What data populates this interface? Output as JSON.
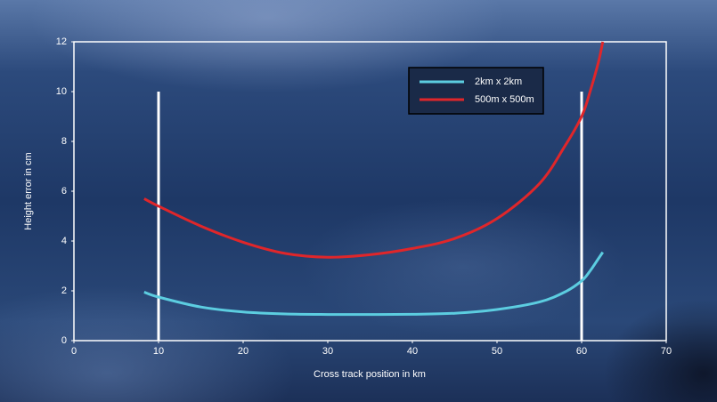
{
  "chart_data": {
    "type": "line",
    "x_label": "Cross track position in km",
    "y_label": "Height error in cm",
    "x": [
      8.3,
      10,
      15,
      20,
      25,
      30,
      35,
      40,
      45,
      50,
      55,
      58,
      60,
      61,
      62,
      62.5
    ],
    "series": [
      {
        "name": "2km x 2km",
        "color": "#5ccde0",
        "values": [
          1.95,
          1.75,
          1.35,
          1.15,
          1.07,
          1.05,
          1.05,
          1.06,
          1.1,
          1.25,
          1.55,
          1.95,
          2.4,
          2.8,
          3.3,
          3.55
        ]
      },
      {
        "name": "500m x 500m",
        "color": "#e0262a",
        "values": [
          5.7,
          5.4,
          4.6,
          3.95,
          3.5,
          3.35,
          3.45,
          3.7,
          4.1,
          4.9,
          6.3,
          7.8,
          9.0,
          10.0,
          11.2,
          12
        ]
      }
    ],
    "vlines": {
      "x": [
        10,
        60
      ],
      "top": 10
    },
    "xlim": [
      0,
      70
    ],
    "xticks": [
      0,
      10,
      20,
      30,
      40,
      50,
      60,
      70
    ],
    "ylim": [
      0,
      12
    ],
    "yticks": [
      0,
      2,
      4,
      6,
      8,
      10,
      12
    ],
    "legend": "upper-right"
  }
}
